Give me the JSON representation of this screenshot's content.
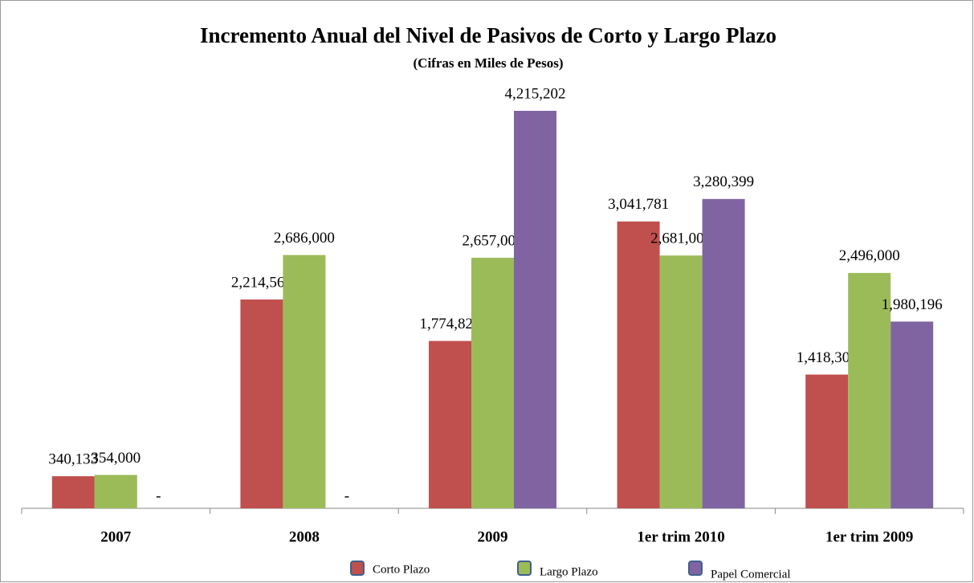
{
  "chart_data": {
    "type": "bar",
    "title": "Incremento Anual del Nivel de Pasivos de Corto y Largo Plazo",
    "subtitle": "(Cifras en Miles de Pesos)",
    "categories": [
      "2007",
      "2008",
      "2009",
      "1er trim 2010",
      "1er trim 2009"
    ],
    "series": [
      {
        "name": "Corto Plazo",
        "color": "#c0504d",
        "values": [
          340133,
          2214563,
          1774826,
          3041781,
          1418304
        ],
        "value_labels": [
          "340,133",
          "2,214,563",
          "1,774,826",
          "3,041,781",
          "1,418,304"
        ]
      },
      {
        "name": "Largo Plazo",
        "color": "#9bbb59",
        "values": [
          354000,
          2686000,
          2657000,
          2681000,
          2496000
        ],
        "value_labels": [
          "354,000",
          "2,686,000",
          "2,657,000",
          "2,681,000",
          "2,496,000"
        ]
      },
      {
        "name": "Papel Comercial",
        "color": "#8064a2",
        "values": [
          0,
          0,
          4215202,
          3280399,
          1980196
        ],
        "value_labels": [
          "-",
          "-",
          "4,215,202",
          "3,280,399",
          "1,980,196"
        ]
      }
    ]
  }
}
